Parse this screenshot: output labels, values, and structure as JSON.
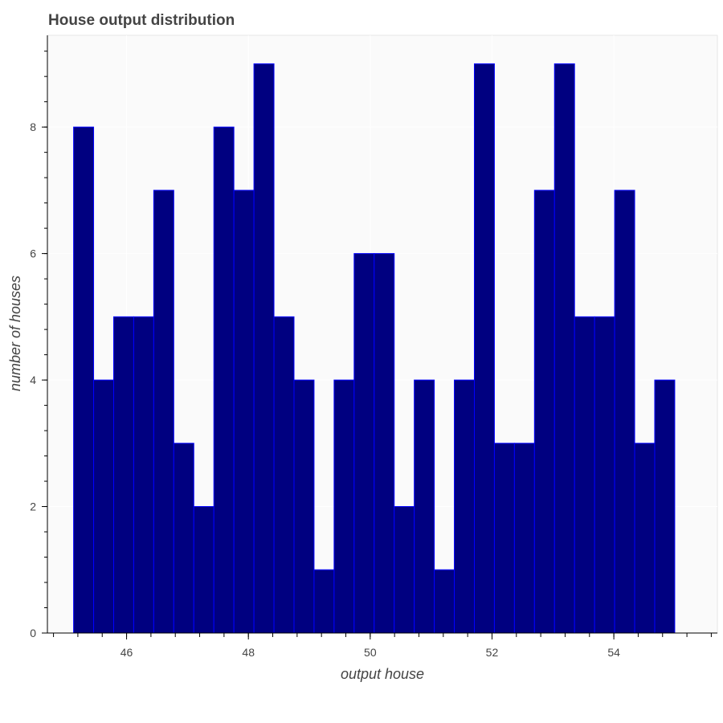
{
  "chart_data": {
    "type": "bar",
    "title": "House output distribution",
    "xlabel": "output house",
    "ylabel": "number of houses",
    "bin_edges": [
      45.13,
      45.459,
      45.788,
      46.117,
      46.446,
      46.775,
      47.104,
      47.433,
      47.762,
      48.091,
      48.42,
      48.749,
      49.078,
      49.407,
      49.736,
      50.065,
      50.394,
      50.723,
      51.052,
      51.381,
      51.71,
      52.039,
      52.368,
      52.697,
      53.026,
      53.355,
      53.684,
      54.013,
      54.342,
      54.671,
      55.0
    ],
    "values": [
      8,
      4,
      5,
      5,
      7,
      3,
      2,
      8,
      7,
      9,
      5,
      4,
      1,
      4,
      6,
      6,
      2,
      4,
      1,
      4,
      9,
      3,
      3,
      7,
      9,
      5,
      5,
      7,
      3,
      4
    ],
    "xlim": [
      44.7,
      55.7
    ],
    "ylim": [
      0,
      9.45
    ],
    "x_ticks": [
      46,
      48,
      50,
      52,
      54
    ],
    "x_minor_step": 0.4,
    "y_ticks": [
      0,
      2,
      4,
      6,
      8
    ],
    "y_minor_step": 0.4,
    "grid": true,
    "bar_fill": "#000080",
    "bar_stroke": "#0000ff",
    "plot_background": "#fafafa",
    "grid_color": "#ffffff",
    "text_color": "#444444"
  }
}
